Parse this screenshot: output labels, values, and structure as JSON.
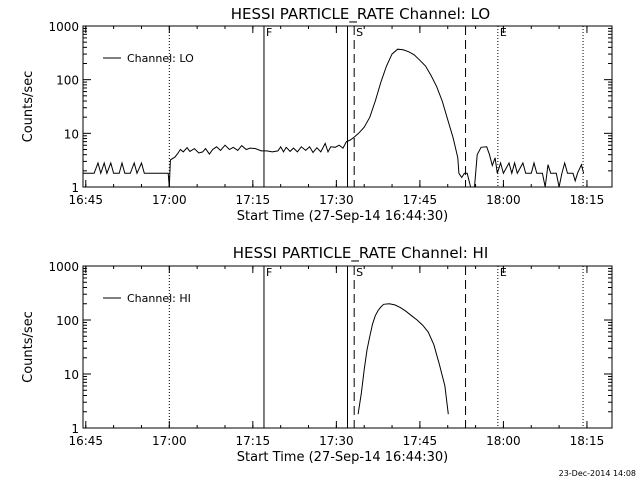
{
  "footer_timestamp": "23-Dec-2014 14:08",
  "chart_data": [
    {
      "type": "line",
      "title": "HESSI PARTICLE_RATE Channel: LO",
      "xlabel": "Start Time (27-Sep-14 16:44:30)",
      "ylabel": "Counts/sec",
      "yscale": "log",
      "xlim_minutes_after_16_44_30": [
        0,
        95
      ],
      "ylim": [
        1,
        1000
      ],
      "x_tick_labels": [
        "16:45",
        "17:00",
        "17:15",
        "17:30",
        "17:45",
        "18:00",
        "18:15"
      ],
      "y_tick_labels": [
        "1",
        "10",
        "100",
        "1000"
      ],
      "legend": {
        "label": "Channel: LO",
        "position": "top-left"
      },
      "markers": [
        {
          "label": "F",
          "t": 32.5,
          "style": "solid"
        },
        {
          "label": "",
          "t": 47.5,
          "style": "solid"
        },
        {
          "label": "S",
          "t": 48.7,
          "style": "dashed"
        },
        {
          "label": "",
          "t": 68.7,
          "style": "dashed"
        },
        {
          "label": "E",
          "t": 74.5,
          "style": "dotted"
        },
        {
          "label": "",
          "t": 15.5,
          "style": "dotted"
        },
        {
          "label": "",
          "t": 89.8,
          "style": "dotted"
        }
      ],
      "series": [
        {
          "name": "Channel: LO",
          "points": [
            [
              0,
              1.8
            ],
            [
              1,
              1.8
            ],
            [
              2,
              1.8
            ],
            [
              2.7,
              2.8
            ],
            [
              3.2,
              1.8
            ],
            [
              3.8,
              2.8
            ],
            [
              4.3,
              1.8
            ],
            [
              5,
              2.8
            ],
            [
              5.5,
              1.8
            ],
            [
              6.5,
              1.8
            ],
            [
              7,
              2.8
            ],
            [
              7.5,
              1.8
            ],
            [
              8.5,
              1.8
            ],
            [
              9.2,
              2.8
            ],
            [
              9.7,
              1.8
            ],
            [
              10.5,
              2.8
            ],
            [
              11,
              1.8
            ],
            [
              12.5,
              1.8
            ],
            [
              13.5,
              1.8
            ],
            [
              14.5,
              1.8
            ],
            [
              15.3,
              1.8
            ],
            [
              15.5,
              1.0
            ],
            [
              15.7,
              3.2
            ],
            [
              16.5,
              3.6
            ],
            [
              17,
              4.2
            ],
            [
              17.5,
              5.0
            ],
            [
              18,
              4.5
            ],
            [
              18.7,
              5.4
            ],
            [
              19.2,
              4.6
            ],
            [
              20,
              5.2
            ],
            [
              20.8,
              4.3
            ],
            [
              21.5,
              4.5
            ],
            [
              22,
              5.2
            ],
            [
              22.7,
              4.1
            ],
            [
              23.3,
              5.0
            ],
            [
              24,
              5.6
            ],
            [
              24.7,
              4.8
            ],
            [
              25.5,
              6.0
            ],
            [
              26.3,
              5.0
            ],
            [
              27,
              5.5
            ],
            [
              27.8,
              4.8
            ],
            [
              28.5,
              5.9
            ],
            [
              29.3,
              5.0
            ],
            [
              30,
              5.3
            ],
            [
              31,
              5.2
            ],
            [
              32,
              4.7
            ],
            [
              33,
              4.7
            ],
            [
              34,
              4.5
            ],
            [
              35,
              4.7
            ],
            [
              35.5,
              5.6
            ],
            [
              36,
              4.5
            ],
            [
              36.5,
              5.5
            ],
            [
              37.2,
              4.6
            ],
            [
              37.8,
              5.3
            ],
            [
              38.5,
              4.5
            ],
            [
              39.2,
              5.6
            ],
            [
              40,
              4.8
            ],
            [
              40.7,
              5.6
            ],
            [
              41.3,
              4.4
            ],
            [
              42,
              5.4
            ],
            [
              42.7,
              4.5
            ],
            [
              43.5,
              6.5
            ],
            [
              44,
              4.5
            ],
            [
              44.5,
              5.6
            ],
            [
              45.3,
              5.5
            ],
            [
              46,
              6.0
            ],
            [
              46.7,
              5.3
            ],
            [
              47.3,
              7.0
            ],
            [
              48,
              7.5
            ],
            [
              48.7,
              8.5
            ],
            [
              49.5,
              10
            ],
            [
              50.5,
              13
            ],
            [
              51.5,
              20
            ],
            [
              52.5,
              40
            ],
            [
              53.5,
              90
            ],
            [
              54.5,
              180
            ],
            [
              55.5,
              300
            ],
            [
              56.5,
              370
            ],
            [
              57.5,
              360
            ],
            [
              58.5,
              330
            ],
            [
              59.5,
              290
            ],
            [
              60.5,
              230
            ],
            [
              61.5,
              180
            ],
            [
              62.5,
              120
            ],
            [
              63.5,
              75
            ],
            [
              64.5,
              40
            ],
            [
              65.5,
              18
            ],
            [
              66.5,
              8
            ],
            [
              67.3,
              3.5
            ],
            [
              67.5,
              1.8
            ],
            [
              68,
              1.5
            ],
            [
              68.5,
              1.8
            ],
            [
              69,
              1.8
            ],
            [
              69.6,
              1.0
            ],
            [
              70.3,
              1.0
            ],
            [
              70.8,
              4.0
            ],
            [
              71.5,
              5.5
            ],
            [
              72.5,
              5.6
            ],
            [
              73,
              4.0
            ],
            [
              73.5,
              2.5
            ],
            [
              74,
              3.5
            ],
            [
              74.4,
              1.8
            ],
            [
              75,
              2.8
            ],
            [
              75.5,
              1.8
            ],
            [
              76.5,
              2.8
            ],
            [
              77,
              1.8
            ],
            [
              77.5,
              2.8
            ],
            [
              78,
              1.8
            ],
            [
              79,
              2.8
            ],
            [
              79.5,
              1.8
            ],
            [
              80.5,
              1.8
            ],
            [
              81,
              2.8
            ],
            [
              81.5,
              1.8
            ],
            [
              82.5,
              1.8
            ],
            [
              83,
              1.0
            ],
            [
              83.5,
              2.6
            ],
            [
              84,
              1.8
            ],
            [
              85,
              1.8
            ],
            [
              85.5,
              1.0
            ],
            [
              86,
              1.8
            ],
            [
              86.5,
              2.8
            ],
            [
              87,
              1.8
            ],
            [
              88,
              1.8
            ],
            [
              88.4,
              1.3
            ],
            [
              88.8,
              1.8
            ],
            [
              89.5,
              2.6
            ],
            [
              89.9,
              1.8
            ]
          ]
        }
      ]
    },
    {
      "type": "line",
      "title": "HESSI PARTICLE_RATE Channel: HI",
      "xlabel": "Start Time (27-Sep-14 16:44:30)",
      "ylabel": "Counts/sec",
      "yscale": "log",
      "xlim_minutes_after_16_44_30": [
        0,
        95
      ],
      "ylim": [
        1,
        1000
      ],
      "x_tick_labels": [
        "16:45",
        "17:00",
        "17:15",
        "17:30",
        "17:45",
        "18:00",
        "18:15"
      ],
      "y_tick_labels": [
        "1",
        "10",
        "100",
        "1000"
      ],
      "legend": {
        "label": "Channel: HI",
        "position": "top-left"
      },
      "markers": [
        {
          "label": "F",
          "t": 32.5,
          "style": "solid"
        },
        {
          "label": "",
          "t": 47.5,
          "style": "solid"
        },
        {
          "label": "S",
          "t": 48.7,
          "style": "dashed"
        },
        {
          "label": "",
          "t": 68.7,
          "style": "dashed"
        },
        {
          "label": "E",
          "t": 74.5,
          "style": "dotted"
        },
        {
          "label": "",
          "t": 15.5,
          "style": "dotted"
        },
        {
          "label": "",
          "t": 89.8,
          "style": "dotted"
        }
      ],
      "series": [
        {
          "name": "Channel: HI",
          "points": [
            [
              49.4,
              1.8
            ],
            [
              50,
              4.5
            ],
            [
              50.5,
              12
            ],
            [
              51,
              28
            ],
            [
              51.5,
              50
            ],
            [
              52,
              85
            ],
            [
              52.5,
              120
            ],
            [
              53,
              150
            ],
            [
              53.5,
              175
            ],
            [
              54,
              195
            ],
            [
              55,
              200
            ],
            [
              56,
              190
            ],
            [
              57,
              170
            ],
            [
              58,
              145
            ],
            [
              59,
              120
            ],
            [
              60,
              100
            ],
            [
              61,
              80
            ],
            [
              62,
              60
            ],
            [
              63,
              35
            ],
            [
              64,
              15
            ],
            [
              65,
              6
            ],
            [
              65.6,
              1.8
            ]
          ]
        }
      ]
    }
  ]
}
